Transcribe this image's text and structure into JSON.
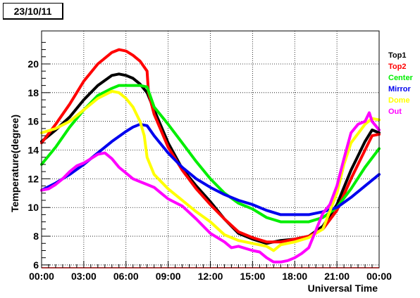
{
  "date_label": "23/10/11",
  "colors": {
    "Top1": "#000000",
    "Top2": "#ff0000",
    "Center": "#00ee00",
    "Mirror": "#0000ee",
    "Dome": "#ffff00",
    "Out": "#ff00ff"
  },
  "chart_data": {
    "type": "line",
    "title": "",
    "xlabel": "Universal Time",
    "ylabel": "Temperature(degree)",
    "xlim": [
      0,
      24
    ],
    "ylim": [
      5.8,
      22.3
    ],
    "grid": true,
    "legend_position": "right",
    "x_ticks": [
      {
        "value": 0,
        "label": "00:00"
      },
      {
        "value": 3,
        "label": "03:00"
      },
      {
        "value": 6,
        "label": "06:00"
      },
      {
        "value": 9,
        "label": "09:00"
      },
      {
        "value": 12,
        "label": "12:00"
      },
      {
        "value": 15,
        "label": "15:00"
      },
      {
        "value": 18,
        "label": "18:00"
      },
      {
        "value": 21,
        "label": "21:00"
      },
      {
        "value": 24,
        "label": "00:00"
      }
    ],
    "y_ticks": [
      {
        "value": 6,
        "label": "6"
      },
      {
        "value": 8,
        "label": "8"
      },
      {
        "value": 10,
        "label": "10"
      },
      {
        "value": 12,
        "label": "12"
      },
      {
        "value": 14,
        "label": "14"
      },
      {
        "value": 16,
        "label": "16"
      },
      {
        "value": 18,
        "label": "18"
      },
      {
        "value": 20,
        "label": "20"
      }
    ],
    "series": [
      {
        "name": "Top1",
        "x": [
          0,
          1,
          2,
          3,
          4,
          5,
          5.5,
          6,
          6.5,
          7,
          7.5,
          8,
          9,
          10,
          11,
          12,
          13,
          14,
          15,
          16,
          16.5,
          17,
          18,
          19,
          20,
          21,
          22,
          23,
          23.5,
          24
        ],
        "y": [
          14.6,
          15.4,
          16.3,
          17.5,
          18.5,
          19.2,
          19.3,
          19.2,
          19.0,
          18.6,
          18.0,
          16.8,
          14.5,
          12.7,
          11.5,
          10.4,
          9.2,
          8.2,
          7.8,
          7.5,
          7.6,
          7.7,
          7.8,
          8.0,
          8.7,
          10.2,
          12.6,
          14.6,
          15.4,
          15.2
        ]
      },
      {
        "name": "Top2",
        "x": [
          0,
          1,
          2,
          3,
          4,
          5,
          5.5,
          6,
          6.5,
          7,
          7.5,
          7.6,
          8,
          9,
          10,
          11,
          12,
          13,
          14,
          15,
          16,
          17,
          18,
          19,
          20,
          21,
          22,
          23,
          23.5,
          24
        ],
        "y": [
          14.5,
          15.8,
          17.2,
          18.8,
          20.0,
          20.8,
          21.0,
          20.9,
          20.6,
          20.2,
          19.5,
          18.0,
          16.5,
          14.2,
          12.6,
          11.3,
          10.2,
          9.2,
          8.3,
          7.9,
          7.6,
          7.6,
          7.8,
          8.0,
          8.5,
          9.8,
          12.0,
          14.0,
          15.0,
          15.1
        ]
      },
      {
        "name": "Center",
        "x": [
          0,
          1,
          2,
          3,
          4,
          5,
          5.5,
          6,
          6.5,
          7,
          7.5,
          8,
          9,
          10,
          11,
          12,
          13,
          14,
          15,
          16,
          17,
          18,
          19,
          20,
          21,
          22,
          23,
          24
        ],
        "y": [
          13.0,
          14.2,
          15.6,
          16.8,
          17.8,
          18.3,
          18.5,
          18.5,
          18.5,
          18.5,
          18.4,
          17.0,
          15.8,
          14.5,
          13.2,
          12.0,
          11.0,
          10.3,
          9.9,
          9.3,
          9.0,
          9.0,
          9.0,
          9.3,
          10.0,
          11.3,
          12.8,
          14.1
        ]
      },
      {
        "name": "Mirror",
        "x": [
          0,
          1,
          2,
          3,
          4,
          5,
          6,
          6.5,
          7,
          7.5,
          8,
          9,
          10,
          11,
          12,
          13,
          14,
          15,
          16,
          17,
          18,
          19,
          20,
          21,
          22,
          23,
          24
        ],
        "y": [
          11.2,
          11.7,
          12.3,
          13.0,
          13.8,
          14.6,
          15.3,
          15.6,
          15.8,
          15.7,
          15.0,
          13.8,
          12.8,
          12.0,
          11.4,
          10.9,
          10.5,
          10.2,
          9.8,
          9.5,
          9.5,
          9.5,
          9.7,
          10.0,
          10.7,
          11.5,
          12.3
        ]
      },
      {
        "name": "Dome",
        "x": [
          0,
          1,
          2,
          3,
          4,
          5,
          5.5,
          6,
          6.5,
          7,
          7.3,
          7.5,
          8,
          9,
          10,
          11,
          12,
          13,
          14,
          15,
          16,
          16.5,
          17,
          18,
          19,
          20,
          21,
          21.5,
          22,
          23,
          23.5,
          24
        ],
        "y": [
          15.2,
          15.5,
          16.0,
          16.8,
          17.6,
          18.1,
          18.0,
          17.6,
          17.0,
          16.0,
          15.0,
          13.5,
          12.3,
          11.3,
          10.5,
          9.7,
          9.0,
          8.1,
          7.7,
          7.5,
          7.3,
          7.0,
          7.4,
          7.6,
          7.9,
          8.5,
          11.0,
          13.0,
          14.5,
          15.8,
          16.2,
          16.1
        ]
      },
      {
        "name": "Out",
        "x": [
          0,
          0.5,
          1,
          1.5,
          2,
          2.5,
          3,
          3.5,
          4,
          4.5,
          5,
          5.5,
          6,
          6.5,
          7,
          7.5,
          8,
          8.5,
          9,
          10,
          11,
          12,
          13,
          13.5,
          14,
          15,
          15.5,
          16,
          16.5,
          17,
          17.5,
          18,
          18.5,
          19,
          19.5,
          20,
          20.5,
          21,
          21.5,
          22,
          22.5,
          23,
          23.3,
          23.5,
          24
        ],
        "y": [
          11.2,
          11.3,
          11.6,
          12.0,
          12.5,
          12.9,
          13.1,
          13.4,
          13.7,
          13.8,
          13.4,
          12.8,
          12.4,
          12.0,
          11.8,
          11.6,
          11.4,
          11.0,
          10.6,
          10.1,
          9.2,
          8.2,
          7.6,
          7.2,
          7.3,
          7.0,
          6.9,
          6.5,
          6.2,
          6.2,
          6.3,
          6.5,
          6.8,
          7.2,
          8.4,
          9.6,
          10.2,
          11.5,
          13.4,
          15.2,
          15.8,
          16.0,
          16.6,
          16.0,
          15.4
        ]
      }
    ]
  }
}
